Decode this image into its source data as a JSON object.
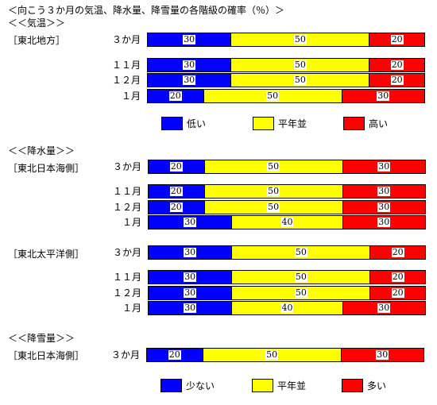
{
  "title": "＜向こう３か月の気温、降水量、降雪量の各階級の確率（％）＞",
  "colors": {
    "low": "#0000ff",
    "normal": "#ffff00",
    "high": "#ff0000"
  },
  "legend_temp": {
    "low": "低い",
    "normal": "平年並",
    "high": "高い"
  },
  "legend_snow": {
    "low": "少ない",
    "normal": "平年並",
    "high": "多い"
  },
  "sections": {
    "temp": {
      "title": "＜＜気温＞＞"
    },
    "precip": {
      "title": "＜＜降水量＞＞"
    },
    "snow": {
      "title": "＜＜降雪量＞＞"
    }
  },
  "chart_data": {
    "type": "bar",
    "stacked": true,
    "orientation": "horizontal",
    "categories": [
      "低い/少ない",
      "平年並",
      "高い/多い"
    ],
    "groups": [
      {
        "section": "気温",
        "region": "［東北地方］",
        "rows": [
          {
            "label": "３か月",
            "values": [
              30,
              50,
              20
            ]
          },
          {
            "label": "１１月",
            "values": [
              30,
              50,
              20
            ]
          },
          {
            "label": "１２月",
            "values": [
              30,
              50,
              20
            ]
          },
          {
            "label": "１月",
            "values": [
              20,
              50,
              30
            ]
          }
        ]
      },
      {
        "section": "降水量",
        "region": "［東北日本海側］",
        "rows": [
          {
            "label": "３か月",
            "values": [
              20,
              50,
              30
            ]
          },
          {
            "label": "１１月",
            "values": [
              20,
              50,
              30
            ]
          },
          {
            "label": "１２月",
            "values": [
              20,
              50,
              30
            ]
          },
          {
            "label": "１月",
            "values": [
              30,
              40,
              30
            ]
          }
        ]
      },
      {
        "section": "降水量",
        "region": "［東北太平洋側］",
        "rows": [
          {
            "label": "３か月",
            "values": [
              30,
              50,
              20
            ]
          },
          {
            "label": "１１月",
            "values": [
              30,
              50,
              20
            ]
          },
          {
            "label": "１２月",
            "values": [
              30,
              50,
              20
            ]
          },
          {
            "label": "１月",
            "values": [
              30,
              40,
              30
            ]
          }
        ]
      },
      {
        "section": "降雪量",
        "region": "［東北日本海側］",
        "rows": [
          {
            "label": "３か月",
            "values": [
              20,
              50,
              30
            ]
          }
        ]
      }
    ]
  }
}
